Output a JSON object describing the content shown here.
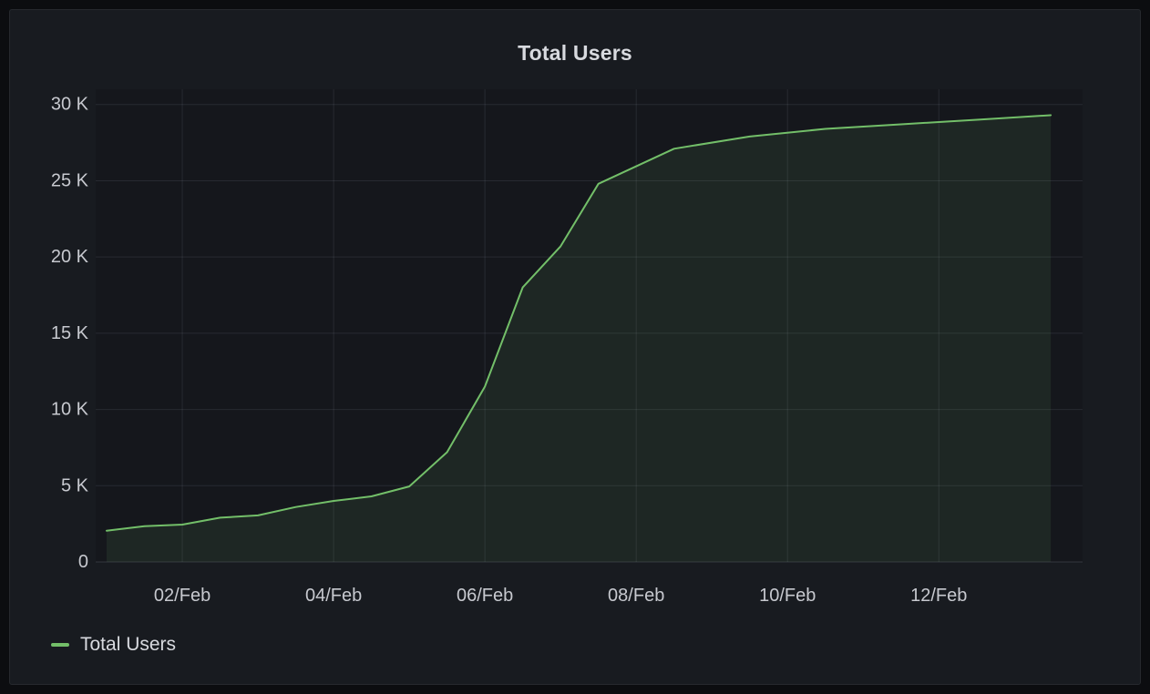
{
  "panel": {
    "title": "Total Users"
  },
  "legend": {
    "items": [
      {
        "label": "Total Users",
        "color": "#73BF69"
      }
    ]
  },
  "colors": {
    "page_bg": "#0C0D10",
    "panel_bg": "#181B20",
    "panel_border": "#26292E",
    "plot_bg": "#15171C",
    "grid": "rgba(204,214,235,0.10)",
    "zero_line": "rgba(204,214,235,0.16)",
    "axis_text": "#C7C9CF",
    "title_text": "#D8DADF",
    "line": "#73BF69"
  },
  "chart_data": {
    "type": "area",
    "title": "Total Users",
    "xlabel": "",
    "ylabel": "",
    "grid": true,
    "legend_position": "bottom-left",
    "x_unit": "days (1 = 01/Feb, 2 = 02/Feb, ...)",
    "x_range": [
      0.855,
      13.9
    ],
    "y_range": [
      0,
      31000
    ],
    "x_ticks": [
      {
        "t": 2,
        "label": "02/Feb"
      },
      {
        "t": 4,
        "label": "04/Feb"
      },
      {
        "t": 6,
        "label": "06/Feb"
      },
      {
        "t": 8,
        "label": "08/Feb"
      },
      {
        "t": 10,
        "label": "10/Feb"
      },
      {
        "t": 12,
        "label": "12/Feb"
      }
    ],
    "y_ticks": [
      {
        "v": 0,
        "label": "0"
      },
      {
        "v": 5000,
        "label": "5 K"
      },
      {
        "v": 10000,
        "label": "10 K"
      },
      {
        "v": 15000,
        "label": "15 K"
      },
      {
        "v": 20000,
        "label": "20 K"
      },
      {
        "v": 25000,
        "label": "25 K"
      },
      {
        "v": 30000,
        "label": "30 K"
      }
    ],
    "series": [
      {
        "name": "Total Users",
        "color": "#73BF69",
        "line_width": 2,
        "fill_opacity": 0.1,
        "points": [
          [
            1.0,
            2050
          ],
          [
            1.5,
            2350
          ],
          [
            2.0,
            2450
          ],
          [
            2.5,
            2900
          ],
          [
            3.0,
            3050
          ],
          [
            3.5,
            3600
          ],
          [
            4.0,
            4000
          ],
          [
            4.5,
            4300
          ],
          [
            5.0,
            4950
          ],
          [
            5.5,
            7200
          ],
          [
            6.0,
            11500
          ],
          [
            6.5,
            18000
          ],
          [
            7.0,
            20700
          ],
          [
            7.5,
            24800
          ],
          [
            8.5,
            27100
          ],
          [
            9.5,
            27900
          ],
          [
            10.5,
            28400
          ],
          [
            11.5,
            28700
          ],
          [
            12.5,
            29000
          ],
          [
            13.48,
            29300
          ]
        ]
      }
    ]
  }
}
